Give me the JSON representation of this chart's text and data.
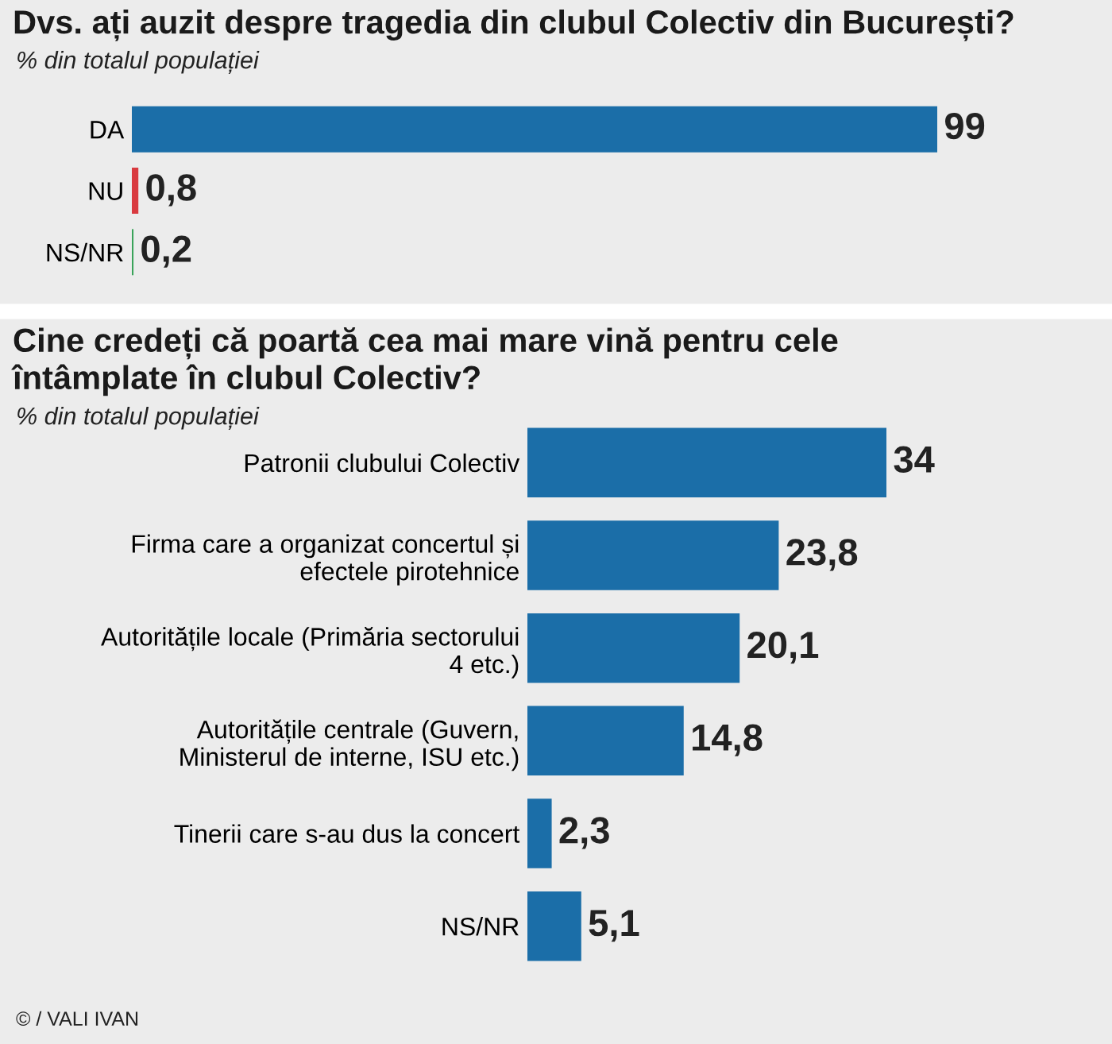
{
  "chart_data": [
    {
      "type": "bar",
      "orientation": "horizontal",
      "title": "Dvs. ați auzit despre tragedia din clubul Colectiv din București?",
      "subtitle": "% din totalul populației",
      "categories": [
        "DA",
        "NU",
        "NS/NR"
      ],
      "values": [
        99,
        0.8,
        0.2
      ],
      "value_labels": [
        "99",
        "0,8",
        "0,2"
      ],
      "colors": [
        "#1b6ea8",
        "#d93a3f",
        "#3aa35a"
      ],
      "grid": false,
      "legend": false,
      "tick_labels": "y"
    },
    {
      "type": "bar",
      "orientation": "horizontal",
      "title": "Cine credeți că poartă cea mai mare vină pentru cele\nîntâmplate în clubul Colectiv?",
      "subtitle": "% din totalul populației",
      "categories": [
        "Patronii clubului Colectiv",
        "Firma care a organizat concertul și\nefectele pirotehnice",
        "Autoritățile locale (Primăria sectorului\n4 etc.)",
        "Autoritățile centrale (Guvern,\nMinisterul de interne, ISU etc.)",
        "Tinerii care s-au dus la concert",
        "NS/NR"
      ],
      "values": [
        34,
        23.8,
        20.1,
        14.8,
        2.3,
        5.1
      ],
      "value_labels": [
        "34",
        "23,8",
        "20,1",
        "14,8",
        "2,3",
        "5,1"
      ],
      "colors": [
        "#1b6ea8",
        "#1b6ea8",
        "#1b6ea8",
        "#1b6ea8",
        "#1b6ea8",
        "#1b6ea8"
      ],
      "grid": false,
      "legend": false,
      "tick_labels": "y",
      "annotations": [
        "© / VALI IVAN"
      ]
    }
  ]
}
